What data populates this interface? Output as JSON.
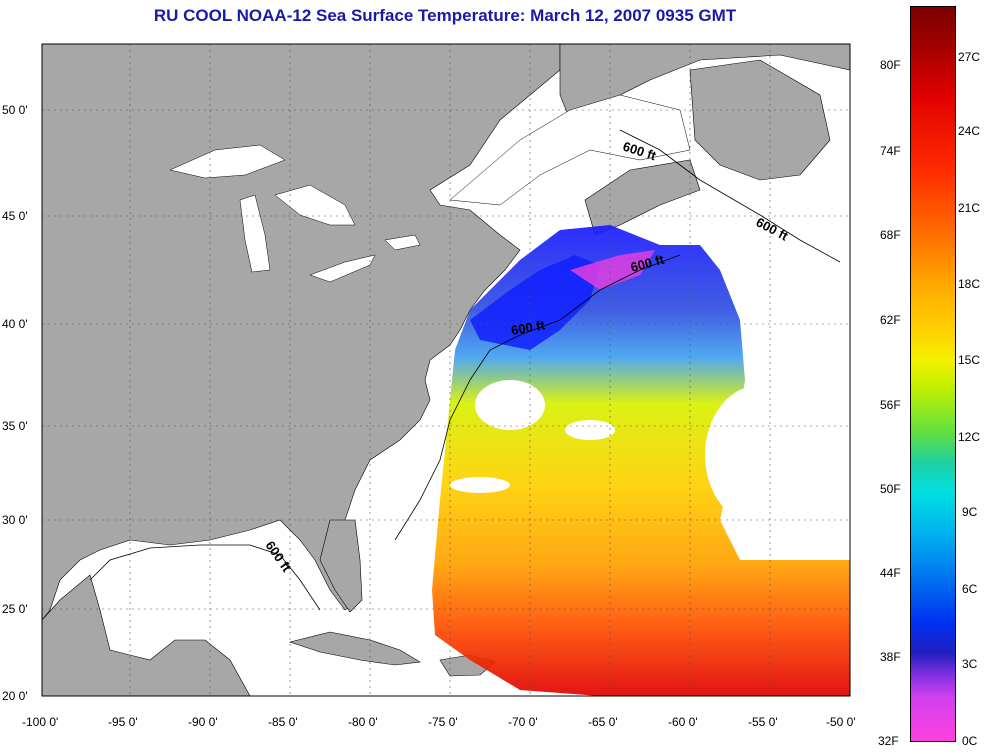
{
  "title": "RU COOL  NOAA-12  Sea Surface Temperature:  March 12, 2007 0935 GMT",
  "lat_ticks": [
    "50 0'",
    "45 0'",
    "40 0'",
    "35 0'",
    "30 0'",
    "25 0'",
    "20 0'"
  ],
  "lon_ticks": [
    "-100 0'",
    "-95 0'",
    "-90 0'",
    "-85 0'",
    "-80 0'",
    "-75 0'",
    "-70 0'",
    "-65 0'",
    "-60 0'",
    "-55 0'",
    "-50 0'"
  ],
  "contour_label": "600 ft",
  "colorbar": {
    "fahrenheit": [
      "80F",
      "74F",
      "68F",
      "62F",
      "56F",
      "50F",
      "44F",
      "38F",
      "32F"
    ],
    "celsius": [
      "27C",
      "24C",
      "21C",
      "18C",
      "15C",
      "12C",
      "9C",
      "6C",
      "3C",
      "0C"
    ]
  }
}
